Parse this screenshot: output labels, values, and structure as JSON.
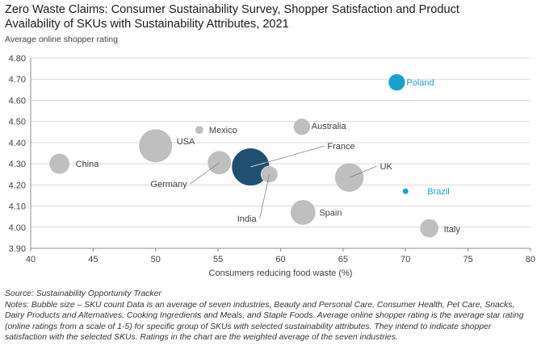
{
  "title": "Zero Waste Claims: Consumer Sustainability Survey, Shopper Satisfaction and Product Availability of SKUs with Sustainability Attributes, 2021",
  "subtitle": "Average online shopper rating",
  "source": "Source: Sustainability Opportunity Tracker",
  "notes": "Notes: Bubble size – SKU count Data is an average of seven industries, Beauty and Personal Care, Consumer Health, Pet Care, Snacks, Dairy Products and Alternatives, Cooking Ingredients and Meals, and Staple Foods. Average online shopper rating is the average star rating (online ratings from a scale of 1-5) for specific group of SKUs with selected sustainability attributes. They intend to indicate shopper satisfaction with the selected SKUs. Ratings in the chart are the weighted average of the seven industries.",
  "colors": {
    "default_bubble": "#bfbfbf",
    "france_bubble": "#1f5070",
    "highlight": "#1aa0d0",
    "grid": "#d9d9d9",
    "axis": "#8c8c8c"
  },
  "chart_data": {
    "type": "scatter",
    "subtype": "bubble",
    "title": "Zero Waste Claims: Consumer Sustainability Survey, Shopper Satisfaction and Product Availability of SKUs with Sustainability Attributes, 2021",
    "xlabel": "Consumers reducing food waste (%)",
    "ylabel": "Average online shopper rating",
    "xlim": [
      40,
      80
    ],
    "ylim": [
      3.9,
      4.8
    ],
    "xticks": [
      40,
      45,
      50,
      55,
      60,
      65,
      70,
      75,
      80
    ],
    "yticks": [
      "3.90",
      "4.00",
      "4.10",
      "4.20",
      "4.30",
      "4.40",
      "4.50",
      "4.60",
      "4.70",
      "4.80"
    ],
    "grid": "horizontal",
    "points": [
      {
        "name": "Poland",
        "x": 69.3,
        "y": 4.685,
        "size": 4,
        "highlight": true
      },
      {
        "name": "Mexico",
        "x": 53.5,
        "y": 4.46,
        "size": 1,
        "highlight": false
      },
      {
        "name": "Australia",
        "x": 61.7,
        "y": 4.475,
        "size": 4,
        "highlight": false
      },
      {
        "name": "USA",
        "x": 50.0,
        "y": 4.385,
        "size": 16,
        "highlight": false
      },
      {
        "name": "China",
        "x": 42.3,
        "y": 4.3,
        "size": 6,
        "highlight": false
      },
      {
        "name": "Germany",
        "x": 55.1,
        "y": 4.305,
        "size": 8,
        "highlight": false
      },
      {
        "name": "France",
        "x": 57.6,
        "y": 4.285,
        "size": 21,
        "highlight": false,
        "featured": true
      },
      {
        "name": "India",
        "x": 59.1,
        "y": 4.25,
        "size": 4,
        "highlight": false
      },
      {
        "name": "UK",
        "x": 65.5,
        "y": 4.235,
        "size": 12,
        "highlight": false
      },
      {
        "name": "Brazil",
        "x": 70.0,
        "y": 4.17,
        "size": 0.5,
        "highlight": true
      },
      {
        "name": "Spain",
        "x": 61.8,
        "y": 4.07,
        "size": 9,
        "highlight": false
      },
      {
        "name": "Italy",
        "x": 71.9,
        "y": 3.995,
        "size": 5,
        "highlight": false
      }
    ]
  }
}
